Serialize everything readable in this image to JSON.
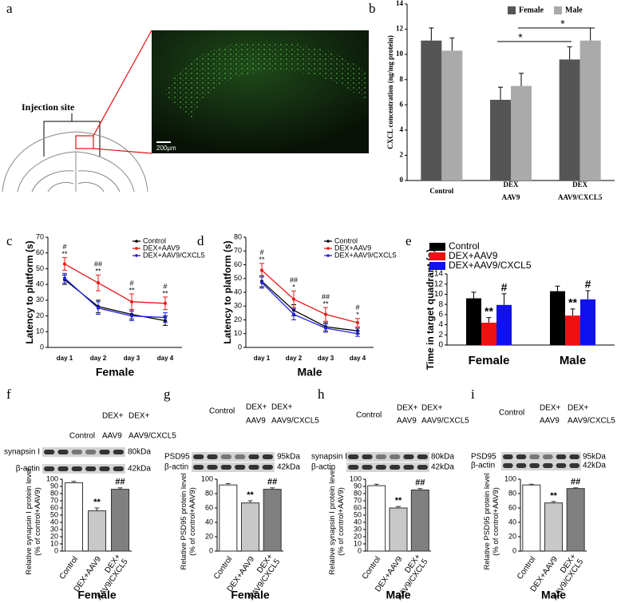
{
  "panel_a": {
    "label": "a",
    "annotation": "Injection site",
    "scale_bar": "200μm"
  },
  "chart_data": [
    {
      "type": "bar",
      "panel": "b",
      "ylabel": "CXCL concentration (ng/mg protein)",
      "categories": [
        [
          "Control"
        ],
        [
          "DEX",
          "AAV9"
        ],
        [
          "DEX",
          "AAV9/CXCL5"
        ]
      ],
      "series": [
        {
          "name": "Female",
          "color": "#555555",
          "values": [
            11.1,
            6.4,
            9.6
          ],
          "errors": [
            1.0,
            1.0,
            1.0
          ]
        },
        {
          "name": "Male",
          "color": "#aaaaaa",
          "values": [
            10.3,
            7.5,
            11.1
          ],
          "errors": [
            1.0,
            1.0,
            1.0
          ]
        }
      ],
      "ylim": [
        0,
        14
      ],
      "yticks": [
        0,
        2,
        4,
        6,
        8,
        10,
        12,
        14
      ],
      "annotations": [
        "*",
        "*"
      ]
    },
    {
      "type": "line",
      "panel": "c",
      "xlabel": "Female",
      "ylabel": "Latency to platform (s)",
      "categories": [
        "day 1",
        "day 2",
        "day 3",
        "day 4"
      ],
      "series": [
        {
          "name": "Control",
          "color": "#000000",
          "values": [
            43,
            26,
            21,
            17
          ],
          "errors": [
            3,
            4,
            3,
            3
          ]
        },
        {
          "name": "DEX+AAV9",
          "color": "#e8191b",
          "values": [
            53,
            41,
            29,
            28
          ],
          "errors": [
            4,
            5,
            5,
            4
          ]
        },
        {
          "name": "DEX+AAV9/CXCL5",
          "color": "#1f1fe0",
          "values": [
            44,
            25,
            20,
            19
          ],
          "errors": [
            3,
            4,
            3,
            3
          ]
        }
      ],
      "ylim": [
        0,
        70
      ],
      "yticks": [
        0,
        10,
        20,
        30,
        40,
        50,
        60,
        70
      ],
      "annotations": [
        [
          "#",
          "**"
        ],
        [
          "##",
          "**"
        ],
        [
          "#",
          "**"
        ],
        [
          "#",
          "**"
        ]
      ]
    },
    {
      "type": "line",
      "panel": "d",
      "xlabel": "Male",
      "ylabel": "Latency to platform (s)",
      "categories": [
        "day 1",
        "day 2",
        "day 3",
        "day 4"
      ],
      "series": [
        {
          "name": "Control",
          "color": "#000000",
          "values": [
            48,
            27,
            15,
            12
          ],
          "errors": [
            4,
            4,
            3,
            2
          ]
        },
        {
          "name": "DEX+AAV9",
          "color": "#e8191b",
          "values": [
            56,
            35,
            24,
            18
          ],
          "errors": [
            5,
            6,
            5,
            3
          ]
        },
        {
          "name": "DEX+AAV9/CXCL5",
          "color": "#1f1fe0",
          "values": [
            47,
            24,
            14,
            10
          ],
          "errors": [
            4,
            4,
            3,
            2
          ]
        }
      ],
      "ylim": [
        0,
        80
      ],
      "yticks": [
        0,
        10,
        20,
        30,
        40,
        50,
        60,
        70,
        80
      ],
      "annotations": [
        [
          "#",
          "**"
        ],
        [
          "##",
          "*"
        ],
        [
          "##",
          "**"
        ],
        [
          "#",
          "*"
        ]
      ]
    },
    {
      "type": "bar",
      "panel": "e",
      "ylabel": "Time in target quadrant (s)",
      "categories": [
        [
          "Female"
        ],
        [
          "Male"
        ]
      ],
      "series": [
        {
          "name": "Control",
          "color": "#000000",
          "values": [
            9.2,
            10.6
          ],
          "errors": [
            1.2,
            1.0
          ]
        },
        {
          "name": "DEX+AAV9",
          "color": "#ee1111",
          "values": [
            4.4,
            5.8
          ],
          "errors": [
            1.0,
            1.3
          ],
          "annotations": [
            "**",
            "**"
          ]
        },
        {
          "name": "DEX+AAV9/CXCL5",
          "color": "#1111ee",
          "values": [
            7.9,
            9.0
          ],
          "errors": [
            2.2,
            1.7
          ],
          "annotations": [
            "#",
            "#"
          ]
        }
      ],
      "ylim": [
        0,
        14
      ],
      "yticks": [
        0,
        2,
        4,
        6,
        8,
        10,
        12,
        14
      ]
    },
    {
      "type": "bar",
      "panel": "f",
      "xlabel": "Female",
      "ylabel": [
        "Relative synapsin I protein level",
        "(% of control+AAV9)"
      ],
      "blot": {
        "columns": [
          [
            "Control"
          ],
          [
            "DEX+",
            "AAV9"
          ],
          [
            "DEX+",
            "AAV9/CXCL5"
          ]
        ],
        "rows": [
          {
            "name": "synapsin I",
            "size": "80kDa"
          },
          {
            "name": "β-actin",
            "size": "42kDa"
          }
        ]
      },
      "categories": [
        [
          "Control"
        ],
        [
          "DEX+AAV9"
        ],
        [
          "DEX+",
          "AAV9/CXCL5"
        ]
      ],
      "values": [
        95,
        56,
        86
      ],
      "errors": [
        2,
        4,
        2
      ],
      "colors": [
        "#ffffff",
        "#c8c8c8",
        "#808080"
      ],
      "ylim": [
        0,
        100
      ],
      "yticks": [
        0,
        10,
        20,
        30,
        40,
        50,
        60,
        70,
        80,
        90,
        100
      ],
      "annotations": [
        null,
        "**",
        "##"
      ]
    },
    {
      "type": "bar",
      "panel": "g",
      "xlabel": "Female",
      "ylabel": [
        "Relative PSD95 protein level",
        "(% of control+AAV9)"
      ],
      "blot": {
        "columns": [
          [
            "Control"
          ],
          [
            "DEX+",
            "AAV9"
          ],
          [
            "DEX+",
            "AAV9/CXCL5"
          ]
        ],
        "rows": [
          {
            "name": "PSD95",
            "size": "95kDa"
          },
          {
            "name": "β-actin",
            "size": "42kDa"
          }
        ]
      },
      "categories": [
        [
          "Control"
        ],
        [
          "DEX+AAV9"
        ],
        [
          "DEX+",
          "AAV9/CXCL5"
        ]
      ],
      "values": [
        92,
        67,
        86
      ],
      "errors": [
        2,
        3,
        2
      ],
      "colors": [
        "#ffffff",
        "#c8c8c8",
        "#808080"
      ],
      "ylim": [
        0,
        100
      ],
      "yticks": [
        0,
        20,
        40,
        60,
        80,
        100
      ],
      "annotations": [
        null,
        "**",
        "##"
      ]
    },
    {
      "type": "bar",
      "panel": "h",
      "xlabel": "Male",
      "ylabel": [
        "Relative synapsin I protein level",
        "(% of control+AAV9)"
      ],
      "blot": {
        "columns": [
          [
            "Control"
          ],
          [
            "DEX+",
            "AAV9"
          ],
          [
            "DEX+",
            "AAV9/CXCL5"
          ]
        ],
        "rows": [
          {
            "name": "synapsin I",
            "size": "80kDa"
          },
          {
            "name": "β-actin",
            "size": "42kDa"
          }
        ]
      },
      "categories": [
        [
          "Control"
        ],
        [
          "DEX+AAV9"
        ],
        [
          "DEX+",
          "AAV9/CXCL5"
        ]
      ],
      "values": [
        91,
        60,
        85
      ],
      "errors": [
        2,
        2,
        2
      ],
      "colors": [
        "#ffffff",
        "#c8c8c8",
        "#808080"
      ],
      "ylim": [
        0,
        100
      ],
      "yticks": [
        0,
        10,
        20,
        30,
        40,
        50,
        60,
        70,
        80,
        90,
        100
      ],
      "annotations": [
        null,
        "**",
        "##"
      ]
    },
    {
      "type": "bar",
      "panel": "i",
      "xlabel": "Male",
      "ylabel": [
        "Relative PSD95 protein level",
        "(% of control+AAV9)"
      ],
      "blot": {
        "columns": [
          [
            "Control"
          ],
          [
            "DEX+",
            "AAV9"
          ],
          [
            "DEX+",
            "AAV9/CXCL5"
          ]
        ],
        "rows": [
          {
            "name": "PSD95",
            "size": "95kDa"
          },
          {
            "name": "β-actin",
            "size": "42kDa"
          }
        ]
      },
      "categories": [
        [
          "Control"
        ],
        [
          "DEX+AAV9"
        ],
        [
          "DEX+",
          "AAV9/CXCL5"
        ]
      ],
      "values": [
        92,
        67,
        87
      ],
      "errors": [
        1,
        2,
        1
      ],
      "colors": [
        "#ffffff",
        "#c8c8c8",
        "#808080"
      ],
      "ylim": [
        0,
        100
      ],
      "yticks": [
        0,
        20,
        40,
        60,
        80,
        100
      ],
      "annotations": [
        null,
        "**",
        "##"
      ]
    }
  ]
}
